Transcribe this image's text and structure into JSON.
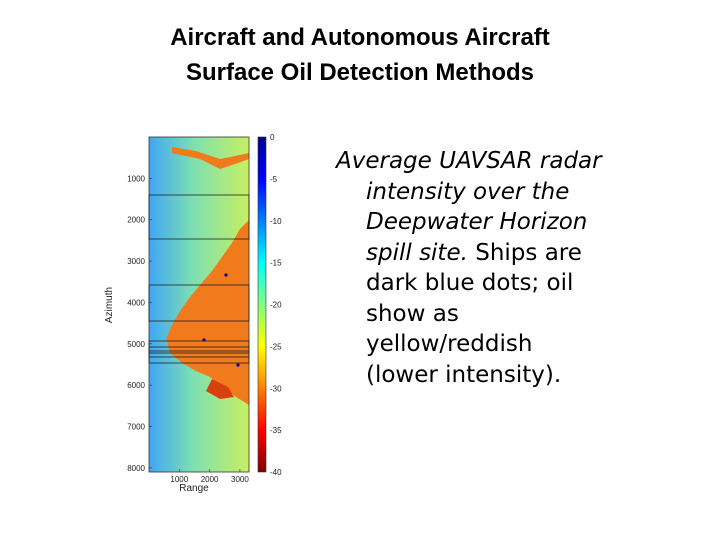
{
  "slide": {
    "title_lines": [
      "Aircraft and Autonomous Aircraft",
      "Surface Oil Detection Methods"
    ]
  },
  "figure": {
    "y_axis_label": "Azimuth",
    "x_axis_label": "Range",
    "y_ticks": [
      "1000",
      "2000",
      "3000",
      "4000",
      "5000",
      "6000",
      "7000",
      "8000"
    ],
    "x_ticks": [
      "1000",
      "2000",
      "3000"
    ],
    "colorbar_ticks": [
      "0",
      "-5",
      "-10",
      "-15",
      "-20",
      "-25",
      "-30",
      "-35",
      "-40"
    ],
    "colorbar_colors": [
      "#00008f",
      "#0000ff",
      "#0080ff",
      "#00ffff",
      "#80ff80",
      "#ffff00",
      "#ff8000",
      "#ff0000",
      "#800000"
    ],
    "image_colors": {
      "water_left": "#3fa6f5",
      "water_mid": "#7fe0b0",
      "water_right": "#c6f060",
      "oil": "#f07a1c",
      "oil_dark": "#d84010"
    }
  },
  "caption": {
    "lines": [
      {
        "text": "Average UAVSAR radar",
        "italic": true,
        "indent": false
      },
      {
        "text": "intensity over the",
        "italic": true,
        "indent": true
      },
      {
        "text": "Deepwater Horizon",
        "italic": true,
        "indent": true
      },
      {
        "text": "spill site.",
        "italic": true,
        "indent": true,
        "rest": " Ships are"
      },
      {
        "text": "dark blue dots; oil",
        "italic": false,
        "indent": true
      },
      {
        "text": "show as",
        "italic": false,
        "indent": true
      },
      {
        "text": "yellow/reddish",
        "italic": false,
        "indent": true
      },
      {
        "text": "(lower intensity).",
        "italic": false,
        "indent": true
      }
    ]
  }
}
